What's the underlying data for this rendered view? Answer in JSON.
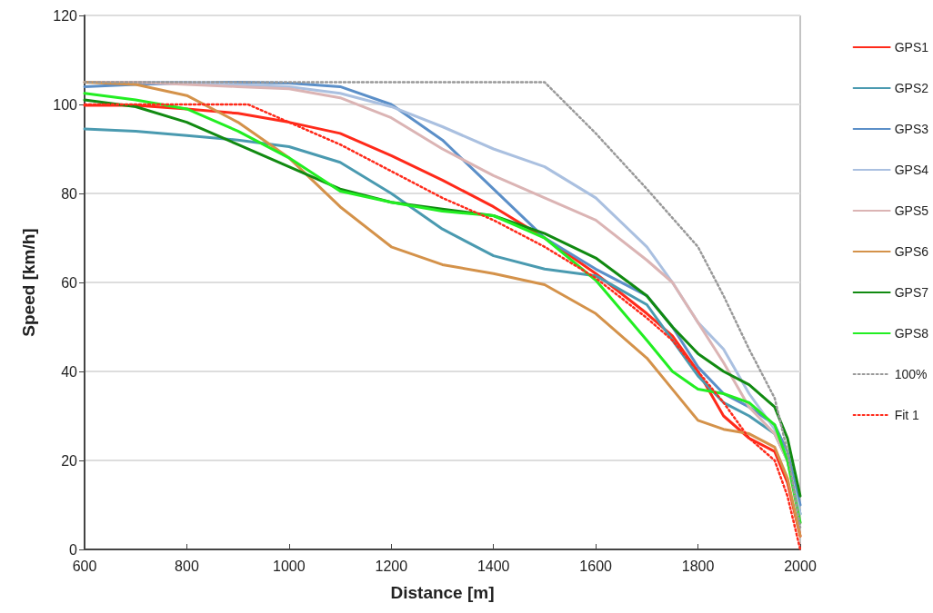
{
  "chart_data": {
    "type": "line",
    "xlabel": "Distance [m]",
    "ylabel": "Speed [km/h]",
    "x": [
      600,
      700,
      800,
      900,
      1000,
      1100,
      1200,
      1300,
      1400,
      1500,
      1600,
      1700,
      1750,
      1800,
      1850,
      1900,
      1950,
      1975,
      2000
    ],
    "series": [
      {
        "name": "GPS1",
        "color": "#ff2a1a",
        "values": [
          99.8,
          99.8,
          99,
          98,
          96,
          93.5,
          88.5,
          83,
          77,
          70,
          62,
          53,
          48,
          40,
          30,
          25,
          22,
          15,
          3
        ]
      },
      {
        "name": "GPS2",
        "color": "#4a9ab0",
        "values": [
          94.5,
          94,
          93,
          92,
          90.5,
          87,
          80,
          72,
          66,
          63,
          61.5,
          55,
          47,
          39,
          33,
          30,
          26,
          20,
          8
        ]
      },
      {
        "name": "GPS3",
        "color": "#5b8fc8",
        "values": [
          104,
          104.5,
          104.8,
          105,
          104.8,
          104,
          100,
          92,
          81,
          70,
          63,
          57,
          50,
          41,
          35,
          32,
          28,
          22,
          10
        ]
      },
      {
        "name": "GPS4",
        "color": "#aac0e0",
        "values": [
          105,
          105,
          105,
          104.5,
          104,
          102.5,
          99.5,
          95,
          90,
          86,
          79,
          68,
          60,
          51,
          45,
          35,
          27,
          20,
          8
        ]
      },
      {
        "name": "GPS5",
        "color": "#dbb4b4",
        "values": [
          105,
          105,
          104.5,
          104,
          103.5,
          101.5,
          97,
          90,
          84,
          79,
          74,
          65,
          60,
          51,
          42,
          32,
          26,
          20,
          6
        ]
      },
      {
        "name": "GPS6",
        "color": "#d4924a",
        "values": [
          105,
          104.5,
          102,
          96,
          88,
          77,
          68,
          64,
          62,
          59.5,
          53,
          43,
          36,
          29,
          27,
          26,
          23,
          16,
          3
        ]
      },
      {
        "name": "GPS7",
        "color": "#118a11",
        "values": [
          101,
          99.5,
          96,
          91,
          86,
          81,
          78,
          76.5,
          75,
          71,
          65.5,
          57,
          50,
          44,
          40,
          37,
          32,
          25,
          12
        ]
      },
      {
        "name": "GPS8",
        "color": "#22ee22",
        "values": [
          102.5,
          101,
          99,
          94,
          88,
          80.5,
          78,
          76,
          75,
          70,
          60.5,
          47,
          40,
          36,
          35,
          33,
          28,
          20,
          6
        ]
      },
      {
        "name": "100%",
        "color": "#999999",
        "line_style": "dotted",
        "x": [
          600,
          1500,
          1600,
          1700,
          1800,
          1850,
          1900,
          1950,
          1975,
          2000
        ],
        "values": [
          105,
          105,
          93.5,
          81,
          68,
          57,
          45,
          34,
          22,
          5
        ]
      },
      {
        "name": "Fit 1",
        "color": "#ff2a1a",
        "line_style": "dotted",
        "x": [
          600,
          920,
          1000,
          1100,
          1200,
          1300,
          1400,
          1500,
          1600,
          1700,
          1750,
          1800,
          1850,
          1900,
          1950,
          1975,
          2000
        ],
        "values": [
          100,
          100,
          96,
          91,
          85,
          79,
          74,
          68,
          61,
          52,
          47,
          40,
          33,
          25,
          20,
          12,
          0
        ]
      }
    ],
    "xlim": [
      600,
      2000
    ],
    "xticks": [
      600,
      800,
      1000,
      1200,
      1400,
      1600,
      1800,
      2000
    ],
    "ylim": [
      0,
      120
    ],
    "yticks": [
      0,
      20,
      40,
      60,
      80,
      100,
      120
    ],
    "grid": "y",
    "legend": "right",
    "marker": "none",
    "line_style": "solid"
  }
}
